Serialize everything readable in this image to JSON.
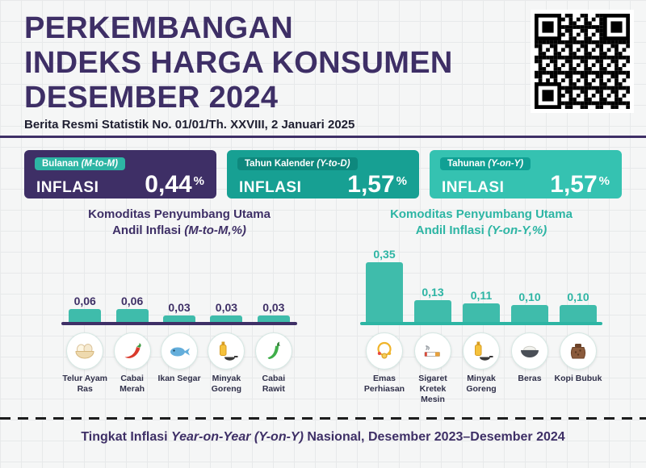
{
  "header": {
    "title_lines": [
      "PERKEMBANGAN",
      "INDEKS HARGA KONSUMEN",
      "DESEMBER 2024"
    ],
    "subtitle": "Berita Resmi Statistik No. 01/01/Th. XXVIII, 2 Januari 2025"
  },
  "colors": {
    "primary_purple": "#3E2F66",
    "teal_accent": "#2DB5A4",
    "bar_fill": "#3FBCAB"
  },
  "stat_cards": [
    {
      "period_prefix": "Bulanan ",
      "period_italic": "(M-to-M)",
      "metric_label": "INFLASI",
      "value": "0,44",
      "unit": "%",
      "card_bg": "#3E2F66",
      "badge_bg": "#2DB5A4"
    },
    {
      "period_prefix": "Tahun Kalender ",
      "period_italic": "(Y-to-D)",
      "metric_label": "INFLASI",
      "value": "1,57",
      "unit": "%",
      "card_bg": "#17A093",
      "badge_bg": "#0E887D"
    },
    {
      "period_prefix": "Tahunan ",
      "period_italic": "(Y-on-Y)",
      "metric_label": "INFLASI",
      "value": "1,57",
      "unit": "%",
      "card_bg": "#35C2B1",
      "badge_bg": "#10A094"
    }
  ],
  "charts": [
    {
      "title_line1": "Komoditas Penyumbang Utama",
      "title_prefix": "Andil Inflasi ",
      "title_italic": "(M-to-M,%)",
      "accent": "#3E2F66",
      "icons": [
        "eggs-basket-icon",
        "red-chili-icon",
        "fish-icon",
        "cooking-oil-icon",
        "green-chili-icon"
      ]
    },
    {
      "title_line1": "Komoditas Penyumbang Utama",
      "title_prefix": "Andil Inflasi ",
      "title_italic": "(Y-on-Y,%)",
      "accent": "#2DB5A4",
      "icons": [
        "gold-jewelry-icon",
        "cigarette-icon",
        "cooking-oil-icon",
        "rice-bowl-icon",
        "coffee-pot-icon"
      ]
    }
  ],
  "chart_data": [
    {
      "type": "bar",
      "title": "Komoditas Penyumbang Utama Andil Inflasi (M-to-M,%)",
      "categories": [
        "Telur Ayam Ras",
        "Cabai Merah",
        "Ikan Segar",
        "Minyak Goreng",
        "Cabai Rawit"
      ],
      "values": [
        0.06,
        0.06,
        0.03,
        0.03,
        0.03
      ],
      "value_labels": [
        "0,06",
        "0,06",
        "0,03",
        "0,03",
        "0,03"
      ],
      "bar_color": "#3FBCAB",
      "ylim": [
        0,
        0.07
      ],
      "grid": false,
      "legend": "none"
    },
    {
      "type": "bar",
      "title": "Komoditas Penyumbang Utama Andil Inflasi (Y-on-Y,%)",
      "categories": [
        "Emas Perhiasan",
        "Sigaret Kretek Mesin",
        "Minyak Goreng",
        "Beras",
        "Kopi Bubuk"
      ],
      "values": [
        0.35,
        0.13,
        0.11,
        0.1,
        0.1
      ],
      "value_labels": [
        "0,35",
        "0,13",
        "0,11",
        "0,10",
        "0,10"
      ],
      "bar_color": "#3FBCAB",
      "ylim": [
        0,
        0.4
      ],
      "grid": false,
      "legend": "none"
    }
  ],
  "footer": {
    "prefix": "Tingkat Inflasi ",
    "italic": "Year-on-Year (Y-on-Y)",
    "suffix": " Nasional, Desember 2023–Desember 2024"
  }
}
